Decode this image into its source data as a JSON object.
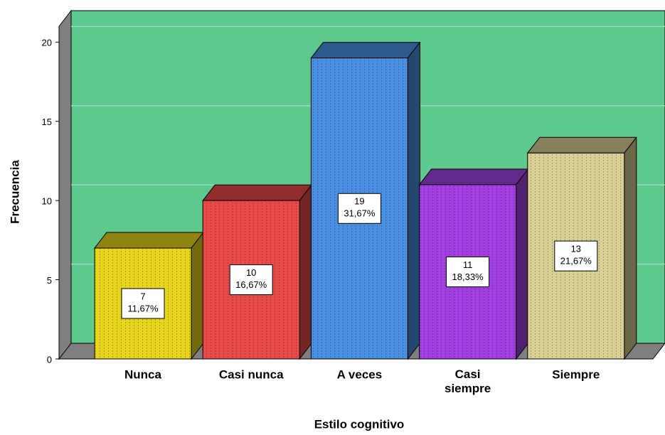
{
  "chart_data": {
    "type": "bar3d",
    "x_label": "Estilo cognitivo",
    "y_label": "Frecuencia",
    "categories": [
      "Nunca",
      "Casi nunca",
      "A veces",
      "Casi siempre",
      "Siempre"
    ],
    "values": [
      7,
      10,
      19,
      11,
      13
    ],
    "percent_values": [
      11.67,
      16.67,
      31.67,
      18.33,
      21.67
    ],
    "percent_labels": [
      "11,67%",
      "16,67%",
      "31,67%",
      "18,33%",
      "21,67%"
    ],
    "colors": [
      "#e6d51c",
      "#e84a4a",
      "#4a90e2",
      "#a13fe0",
      "#d9cf94"
    ],
    "plot_color": "#5ec98e",
    "ylim": [
      0,
      21
    ],
    "yticks": [
      0,
      5,
      10,
      15,
      20
    ],
    "grid": true
  }
}
